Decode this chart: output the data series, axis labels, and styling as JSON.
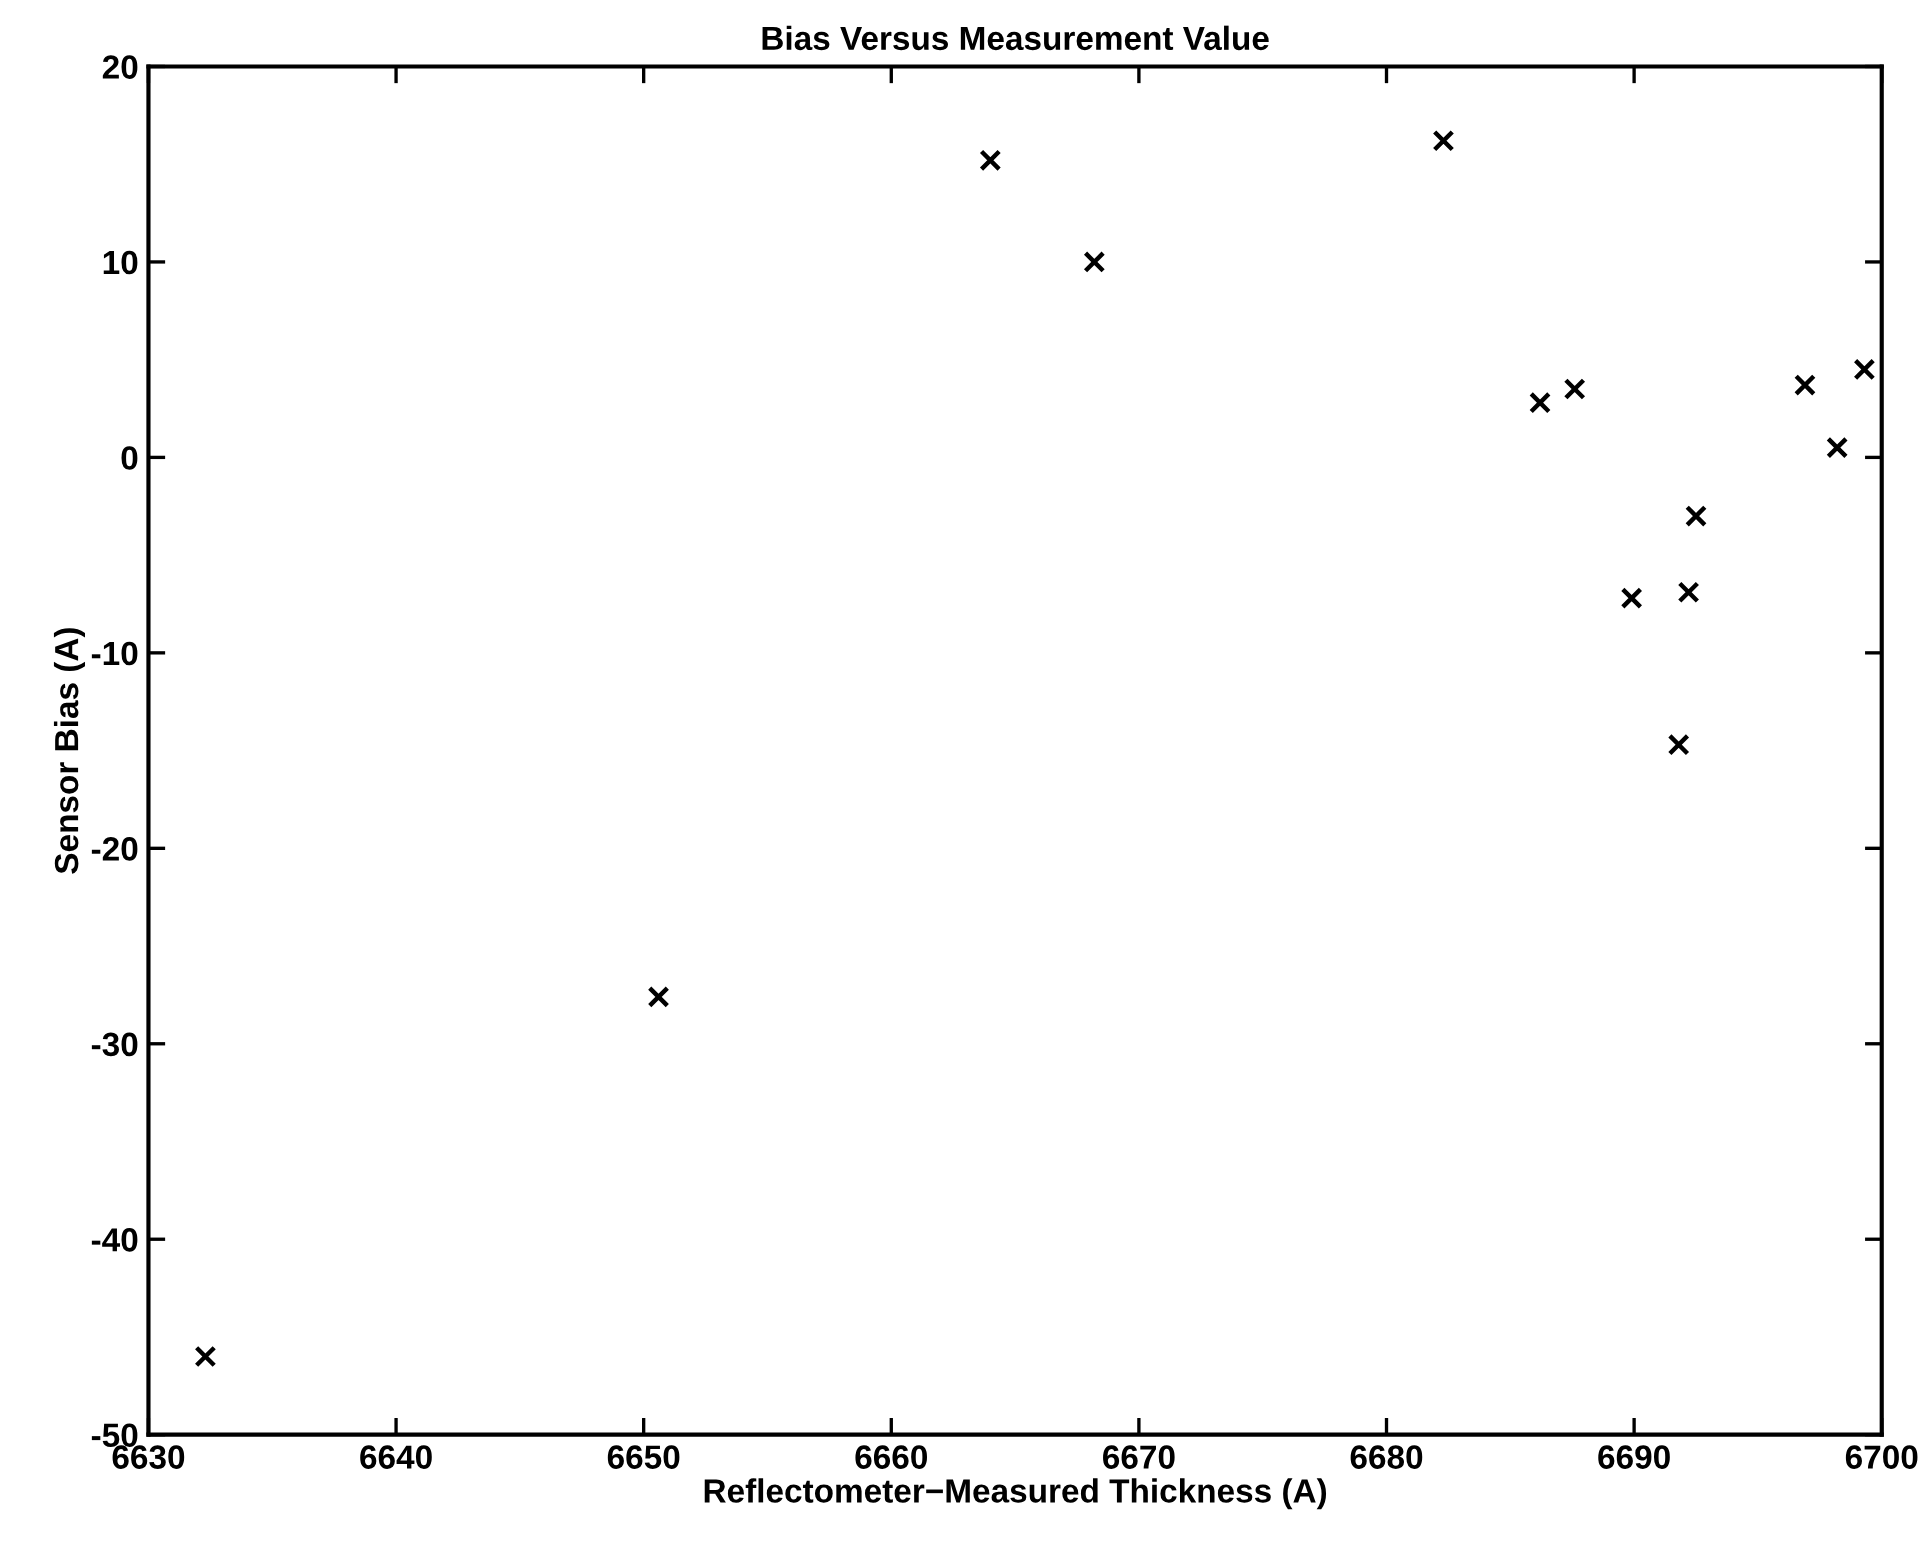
{
  "chart_data": {
    "type": "scatter",
    "title": "Bias Versus Measurement Value",
    "xlabel": "Reflectometer−Measured Thickness (A)",
    "ylabel": "Sensor Bias (A)",
    "x": [
      6632.3,
      6650.6,
      6664.0,
      6668.2,
      6682.3,
      6686.2,
      6687.6,
      6689.9,
      6692.2,
      6692.5,
      6691.8,
      6696.9,
      6698.2,
      6699.3
    ],
    "series": [
      {
        "color": "#000000",
        "values": [
          -46,
          -27.6,
          15.2,
          10,
          16.2,
          2.8,
          3.5,
          -7.2,
          -6.9,
          -3.0,
          -14.7,
          3.7,
          0.5,
          4.5
        ]
      }
    ],
    "xlim": [
      6630,
      6700
    ],
    "xticks": [
      6630,
      6640,
      6650,
      6660,
      6670,
      6680,
      6690,
      6700
    ],
    "ylim": [
      -50,
      20
    ],
    "yticks": [
      -50,
      -40,
      -30,
      -20,
      -10,
      0,
      10,
      20
    ],
    "marker": "cross",
    "grid": false,
    "legend": false
  }
}
